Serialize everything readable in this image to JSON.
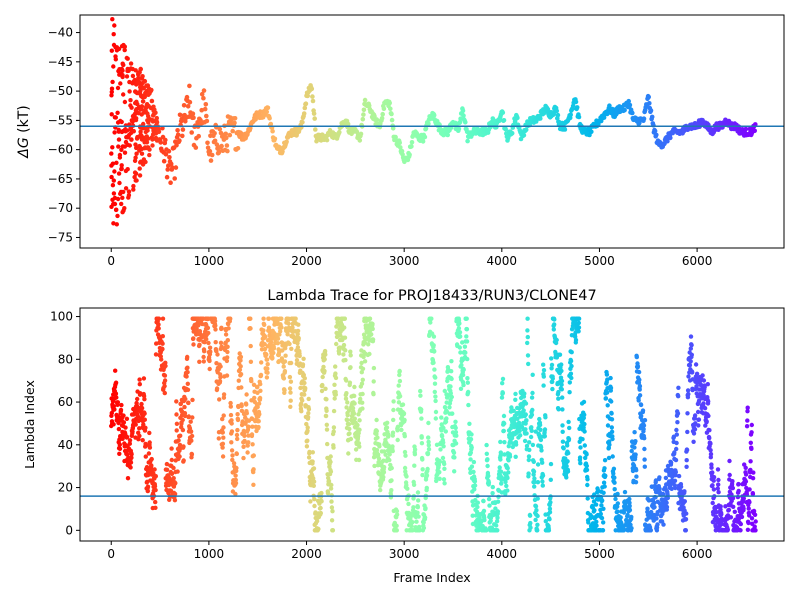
{
  "chart_data": [
    {
      "type": "scatter",
      "title": "",
      "xlabel": "",
      "ylabel": "ΔG (kT)",
      "ylabel_symbol": "ΔG",
      "ylabel_unit": " (kT)",
      "xlim": [
        -320,
        6890
      ],
      "ylim": [
        -76.8,
        -37.0
      ],
      "xticks": [
        0,
        1000,
        2000,
        3000,
        4000,
        5000,
        6000
      ],
      "xtick_labels": [
        "0",
        "1000",
        "2000",
        "3000",
        "4000",
        "5000",
        "6000"
      ],
      "yticks": [
        -40,
        -45,
        -50,
        -55,
        -60,
        -65,
        -70,
        -75
      ],
      "ytick_labels": [
        "−40",
        "−45",
        "−50",
        "−55",
        "−60",
        "−65",
        "−70",
        "−75"
      ],
      "hline": -56.0,
      "hline_color": "#1f77b4",
      "colormap": "rainbow",
      "grid": false,
      "n_points": 6600,
      "trace": {
        "x": [
          0,
          50,
          100,
          150,
          200,
          250,
          300,
          350,
          400,
          450,
          500,
          550,
          600,
          650,
          700,
          750,
          800,
          850,
          900,
          950,
          1000,
          1050,
          1100,
          1150,
          1200,
          1250,
          1300,
          1350,
          1400,
          1450,
          1500,
          1550,
          1600,
          1650,
          1700,
          1750,
          1800,
          1850,
          1900,
          1950,
          2000,
          2050,
          2100,
          2150,
          2200,
          2250,
          2300,
          2350,
          2400,
          2450,
          2500,
          2550,
          2600,
          2650,
          2700,
          2750,
          2800,
          2850,
          2900,
          2950,
          3000,
          3050,
          3100,
          3150,
          3200,
          3250,
          3300,
          3350,
          3400,
          3450,
          3500,
          3550,
          3600,
          3650,
          3700,
          3750,
          3800,
          3850,
          3900,
          3950,
          4000,
          4050,
          4100,
          4150,
          4200,
          4250,
          4300,
          4350,
          4400,
          4450,
          4500,
          4550,
          4600,
          4650,
          4700,
          4750,
          4800,
          4850,
          4900,
          4950,
          5000,
          5050,
          5100,
          5150,
          5200,
          5250,
          5300,
          5350,
          5400,
          5450,
          5500,
          5550,
          5600,
          5650,
          5700,
          5750,
          5800,
          5850,
          5900,
          5950,
          6000,
          6050,
          6100,
          6150,
          6200,
          6250,
          6300,
          6350,
          6400,
          6450,
          6500,
          6550,
          6600
        ],
        "y": [
          -58,
          -58,
          -57,
          -58,
          -57,
          -52,
          -48,
          -51,
          -52,
          -56,
          -58,
          -60,
          -64,
          -62,
          -57,
          -55,
          -52,
          -58,
          -55,
          -52,
          -60,
          -59,
          -58,
          -59,
          -57,
          -57,
          -57,
          -58,
          -57,
          -55,
          -54,
          -54,
          -53,
          -57,
          -60,
          -60,
          -58,
          -57,
          -57,
          -56,
          -51,
          -49,
          -58,
          -58,
          -58,
          -57,
          -58,
          -56,
          -55,
          -57,
          -57,
          -58,
          -52,
          -53,
          -55,
          -56,
          -52,
          -52,
          -58,
          -59,
          -62,
          -61,
          -57,
          -58,
          -58,
          -55,
          -54,
          -56,
          -57,
          -57,
          -55,
          -57,
          -53,
          -58,
          -57,
          -57,
          -57,
          -57,
          -55,
          -56,
          -53,
          -58,
          -57,
          -54,
          -58,
          -56,
          -55,
          -55,
          -54,
          -53,
          -54,
          -53,
          -56,
          -56,
          -54,
          -51,
          -56,
          -57,
          -57,
          -56,
          -55,
          -54,
          -53,
          -54,
          -53,
          -53,
          -52,
          -55,
          -55,
          -55,
          -51,
          -56,
          -59,
          -59,
          -58,
          -57,
          -57,
          -57,
          -56,
          -56,
          -56,
          -55,
          -56,
          -57,
          -56,
          -56,
          -55,
          -56,
          -56,
          -57,
          -57,
          -57,
          -56
        ]
      },
      "early_scatter": {
        "x_range": [
          0,
          480
        ],
        "y_range": [
          -76,
          -37
        ]
      }
    },
    {
      "type": "scatter",
      "title": "Lambda Trace for PROJ18433/RUN3/CLONE47",
      "xlabel": "Frame Index",
      "ylabel": "Lambda Index",
      "xlim": [
        -320,
        6890
      ],
      "ylim": [
        -5,
        104
      ],
      "xticks": [
        0,
        1000,
        2000,
        3000,
        4000,
        5000,
        6000
      ],
      "xtick_labels": [
        "0",
        "1000",
        "2000",
        "3000",
        "4000",
        "5000",
        "6000"
      ],
      "yticks": [
        0,
        20,
        40,
        60,
        80,
        100
      ],
      "ytick_labels": [
        "0",
        "20",
        "40",
        "60",
        "80",
        "100"
      ],
      "hline": 16,
      "hline_color": "#1f77b4",
      "colormap": "rainbow",
      "grid": false,
      "n_points": 6600,
      "value_range": [
        0,
        99
      ]
    }
  ]
}
